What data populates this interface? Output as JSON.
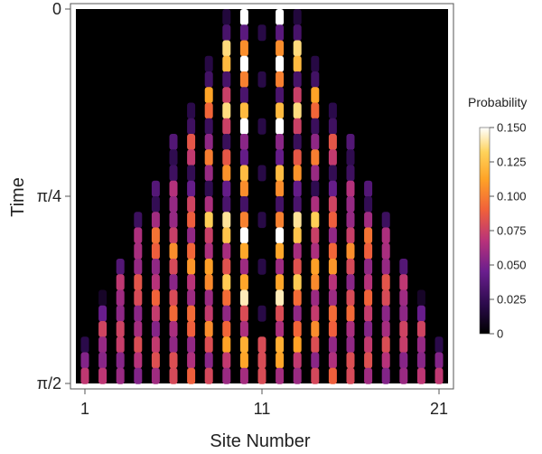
{
  "chart_data": {
    "type": "heatmap",
    "title": "",
    "xlabel": "Site Number",
    "ylabel": "Time",
    "x_ticks": [
      "1",
      "11",
      "21"
    ],
    "x_tick_values": [
      1,
      11,
      21
    ],
    "y_ticks": [
      "0",
      "π/4",
      "π/2"
    ],
    "y_tick_values": [
      0,
      0.7854,
      1.5708
    ],
    "x_range": [
      1,
      21
    ],
    "y_range": [
      0,
      1.5708
    ],
    "y_direction": "downward",
    "colorbar": {
      "title": "Probability",
      "ticks": [
        "0",
        "0.025",
        "0.050",
        "0.075",
        "0.100",
        "0.125",
        "0.150"
      ],
      "tick_values": [
        0,
        0.025,
        0.05,
        0.075,
        0.1,
        0.125,
        0.15
      ],
      "range": [
        0,
        0.15
      ],
      "colors": [
        "#000000",
        "#2a0a4a",
        "#6a1e8e",
        "#b8327a",
        "#f0603a",
        "#ffa326",
        "#ffd25a",
        "#ffffff"
      ]
    },
    "sites": 21,
    "initial_site": 11,
    "time_steps": 24,
    "description_of_values": "probability per site and time step; zero at the center column for all times except near the bottom; fills outward over time"
  }
}
